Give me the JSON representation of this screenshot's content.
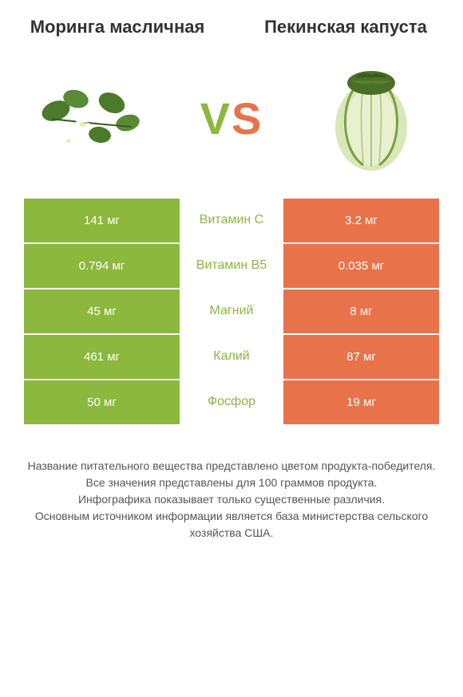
{
  "titles": {
    "left": "Моринга масличная",
    "right": "Пекинская капуста"
  },
  "vs": {
    "v": "V",
    "s": "S"
  },
  "colors": {
    "left_bg": "#8bb83d",
    "right_bg": "#e8734a",
    "middle_text_left": "#8bb83d",
    "middle_text_right": "#e8734a"
  },
  "rows": [
    {
      "left": "141 мг",
      "middle": "Витамин C",
      "right": "3.2 мг",
      "winner": "left"
    },
    {
      "left": "0.794 мг",
      "middle": "Витамин B5",
      "right": "0.035 мг",
      "winner": "left"
    },
    {
      "left": "45 мг",
      "middle": "Магний",
      "right": "8 мг",
      "winner": "left"
    },
    {
      "left": "461 мг",
      "middle": "Калий",
      "right": "87 мг",
      "winner": "left"
    },
    {
      "left": "50 мг",
      "middle": "Фосфор",
      "right": "19 мг",
      "winner": "left"
    }
  ],
  "footer": {
    "line1": "Название питательного вещества представлено цветом продукта-победителя.",
    "line2": "Все значения представлены для 100 граммов продукта.",
    "line3": "Инфографика показывает только существенные различия.",
    "line4": "Основным источником информации является база министерства сельского хозяйства США."
  }
}
